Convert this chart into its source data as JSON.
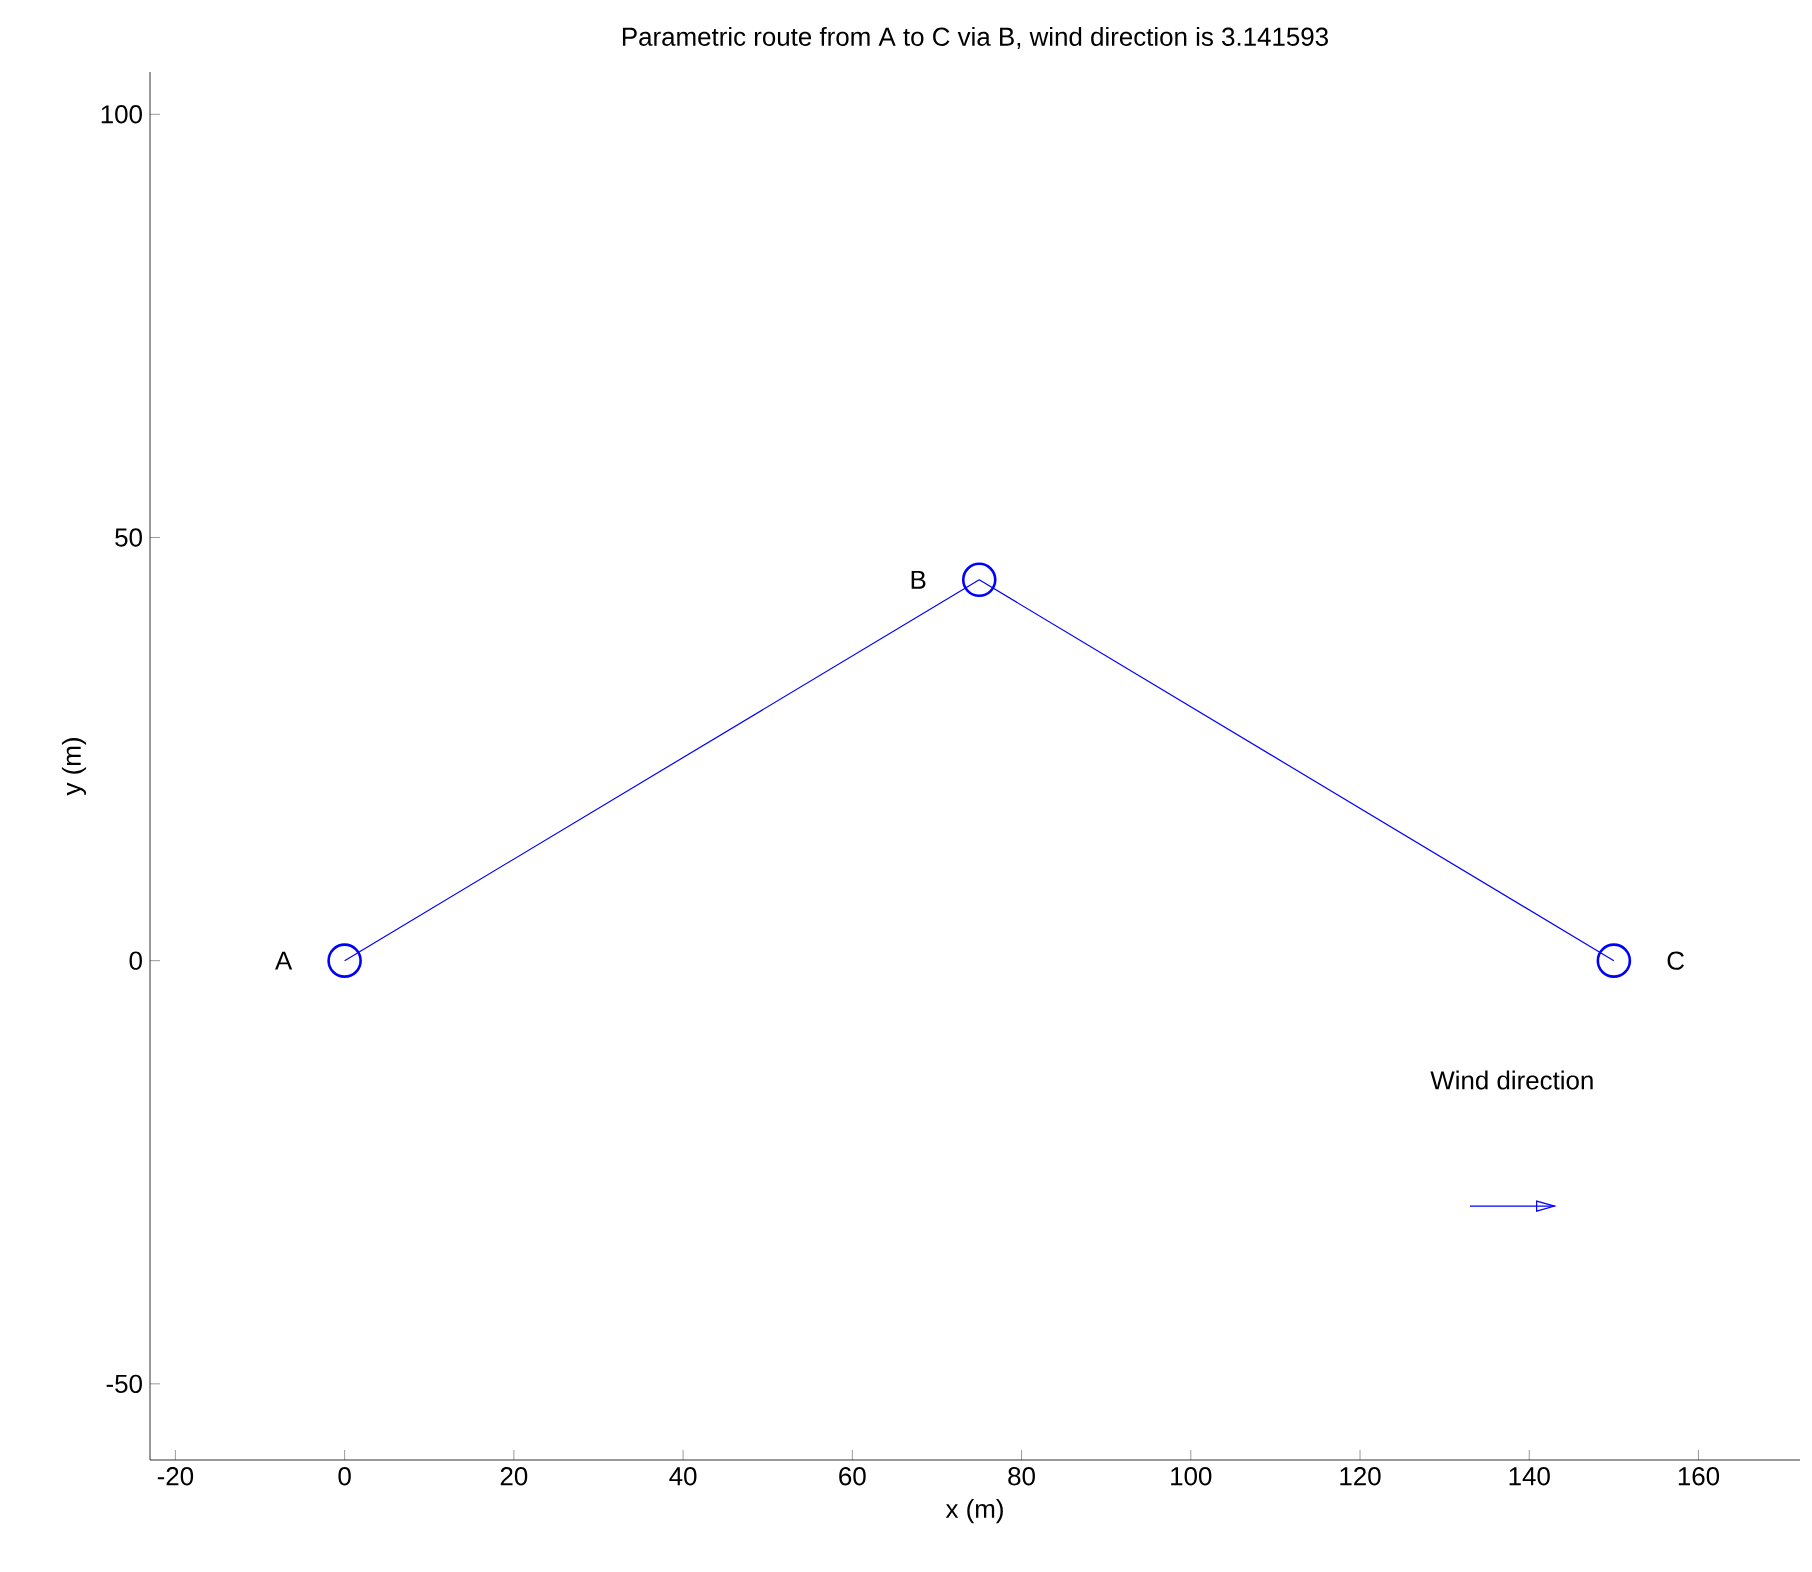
{
  "chart_data": {
    "type": "line",
    "title": "Parametric route from A to C via B, wind direction is 3.141593",
    "xlabel": "x (m)",
    "ylabel": "y (m)",
    "series": [
      {
        "color": "#0000ff",
        "x": [
          0,
          75,
          150
        ],
        "values": [
          0,
          45,
          0
        ],
        "marker": "none",
        "line_style": "solid"
      },
      {
        "type": "scatter",
        "color": "#0000ff",
        "x": [
          0,
          75,
          150
        ],
        "values": [
          0,
          45,
          0
        ],
        "marker": "circle"
      },
      {
        "color": "#0000ff",
        "x": [
          133,
          143
        ],
        "values": [
          -29,
          -29
        ],
        "marker": "none",
        "line_style": "solid"
      }
    ],
    "annotations": [
      "A",
      "B",
      "C",
      "Wind direction"
    ],
    "xlim": [
      -23,
      172
    ],
    "ylim": [
      -59,
      105
    ],
    "xticks": [
      -20,
      0,
      20,
      40,
      60,
      80,
      100,
      120,
      140,
      160
    ],
    "yticks": [
      -50,
      0,
      50,
      100
    ]
  }
}
